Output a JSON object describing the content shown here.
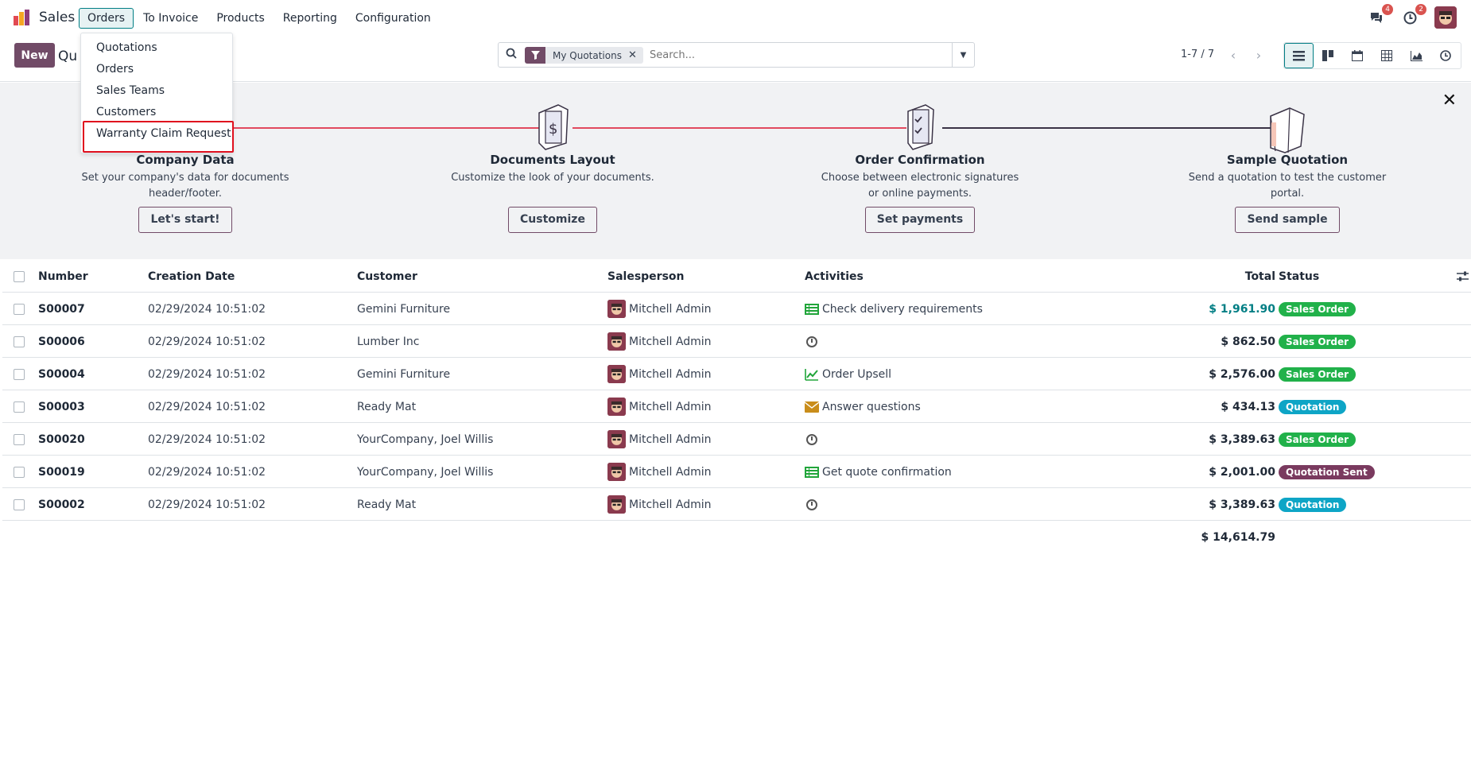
{
  "app": {
    "name": "Sales"
  },
  "nav": {
    "items": [
      {
        "label": "Orders",
        "active": true
      },
      {
        "label": "To Invoice"
      },
      {
        "label": "Products"
      },
      {
        "label": "Reporting"
      },
      {
        "label": "Configuration"
      }
    ]
  },
  "systray": {
    "messages_count": "4",
    "activities_count": "2"
  },
  "controlpanel": {
    "new_label": "New",
    "title_partial": "Qu",
    "search": {
      "facet_label": "My Quotations",
      "placeholder": "Search..."
    },
    "pager": "1-7 / 7"
  },
  "dropdown": {
    "items": [
      "Quotations",
      "Orders",
      "Sales Teams",
      "Customers",
      "Warranty Claim Request"
    ],
    "highlighted": "Warranty Claim Request"
  },
  "onboarding": {
    "steps": [
      {
        "title": "Company Data",
        "desc_line1": "Set your company's data for documents",
        "desc_line2": "header/footer.",
        "button": "Let's start!"
      },
      {
        "title": "Documents Layout",
        "desc_line1": "Customize the look of your documents.",
        "desc_line2": "",
        "button": "Customize"
      },
      {
        "title": "Order Confirmation",
        "desc_line1": "Choose between electronic signatures",
        "desc_line2": "or online payments.",
        "button": "Set payments"
      },
      {
        "title": "Sample Quotation",
        "desc_line1": "Send a quotation to test the customer",
        "desc_line2": "portal.",
        "button": "Send sample"
      }
    ]
  },
  "table": {
    "headers": {
      "number": "Number",
      "creation_date": "Creation Date",
      "customer": "Customer",
      "salesperson": "Salesperson",
      "activities": "Activities",
      "total": "Total",
      "status": "Status"
    },
    "rows": [
      {
        "number": "S00007",
        "date": "02/29/2024 10:51:02",
        "customer": "Gemini Furniture",
        "salesperson": "Mitchell Admin",
        "activity": "Check delivery requirements",
        "activity_icon": "todo-list-icon",
        "total": "$ 1,961.90",
        "status": "Sales Order"
      },
      {
        "number": "S00006",
        "date": "02/29/2024 10:51:02",
        "customer": "Lumber Inc",
        "salesperson": "Mitchell Admin",
        "activity": "",
        "activity_icon": "clock-icon",
        "total": "$ 862.50",
        "status": "Sales Order"
      },
      {
        "number": "S00004",
        "date": "02/29/2024 10:51:02",
        "customer": "Gemini Furniture",
        "salesperson": "Mitchell Admin",
        "activity": "Order Upsell",
        "activity_icon": "upsell-chart-icon",
        "total": "$ 2,576.00",
        "status": "Sales Order"
      },
      {
        "number": "S00003",
        "date": "02/29/2024 10:51:02",
        "customer": "Ready Mat",
        "salesperson": "Mitchell Admin",
        "activity": "Answer questions",
        "activity_icon": "envelope-icon",
        "total": "$ 434.13",
        "status": "Quotation"
      },
      {
        "number": "S00020",
        "date": "02/29/2024 10:51:02",
        "customer": "YourCompany, Joel Willis",
        "salesperson": "Mitchell Admin",
        "activity": "",
        "activity_icon": "clock-icon",
        "total": "$ 3,389.63",
        "status": "Sales Order"
      },
      {
        "number": "S00019",
        "date": "02/29/2024 10:51:02",
        "customer": "YourCompany, Joel Willis",
        "salesperson": "Mitchell Admin",
        "activity": "Get quote confirmation",
        "activity_icon": "todo-list-icon",
        "total": "$ 2,001.00",
        "status": "Quotation Sent"
      },
      {
        "number": "S00002",
        "date": "02/29/2024 10:51:02",
        "customer": "Ready Mat",
        "salesperson": "Mitchell Admin",
        "activity": "",
        "activity_icon": "clock-icon",
        "total": "$ 3,389.63",
        "status": "Quotation"
      }
    ],
    "grand_total": "$ 14,614.79"
  },
  "colors": {
    "primary": "#714b67",
    "accent": "#017e84",
    "sales_order": "#21b14a",
    "quotation": "#0ea5c6",
    "quotation_sent": "#7a3a5f",
    "highlight_border": "#e0101e"
  }
}
